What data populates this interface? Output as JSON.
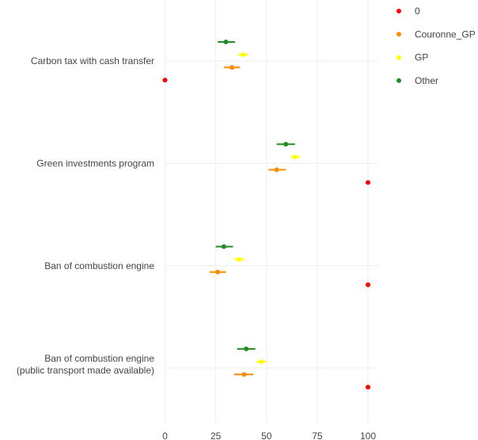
{
  "chart_data": {
    "type": "scatter",
    "orientation": "horizontal",
    "xlim": [
      0,
      105
    ],
    "xticks": [
      0,
      25,
      50,
      75,
      100
    ],
    "xlabel": "",
    "ylabel": "",
    "title": "",
    "grid": true,
    "error_bars": true,
    "legend_position": "top-right",
    "categories": [
      [
        "Carbon tax with cash transfer"
      ],
      [
        "Green investments program"
      ],
      [
        "Ban of combustion engine"
      ],
      [
        "Ban of combustion engine",
        "(public transport made available)"
      ]
    ],
    "series": [
      {
        "name": "0",
        "color": "#ff0000",
        "values": [
          0,
          100,
          100,
          100
        ],
        "errors": [
          [
            0,
            0
          ],
          [
            100,
            100
          ],
          [
            100,
            100
          ],
          [
            100,
            100
          ]
        ]
      },
      {
        "name": "Couronne_GP",
        "color": "#ff8c00",
        "values": [
          33,
          55,
          26,
          39
        ],
        "errors": [
          [
            29,
            37
          ],
          [
            51,
            59.5
          ],
          [
            22,
            30
          ],
          [
            34,
            43.5
          ]
        ]
      },
      {
        "name": "GP",
        "color": "#ffff00",
        "values": [
          38.5,
          64,
          36.5,
          47.5
        ],
        "errors": [
          [
            36,
            41
          ],
          [
            62,
            66.5
          ],
          [
            34,
            39
          ],
          [
            45,
            50
          ]
        ]
      },
      {
        "name": "Other",
        "color": "#228b22",
        "values": [
          30,
          59.5,
          29,
          40
        ],
        "errors": [
          [
            26,
            34.5
          ],
          [
            55,
            64
          ],
          [
            25,
            33.5
          ],
          [
            35.5,
            44.5
          ]
        ]
      }
    ]
  }
}
